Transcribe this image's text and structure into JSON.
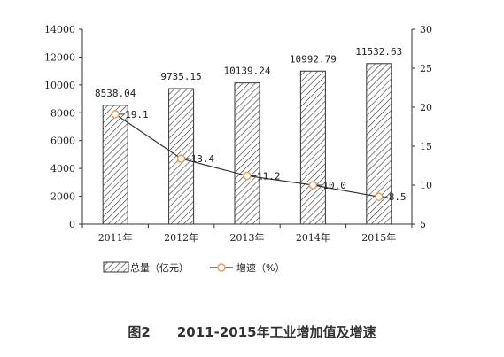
{
  "chart_data": {
    "type": "bar+line",
    "categories": [
      "2011年",
      "2012年",
      "2013年",
      "2014年",
      "2015年"
    ],
    "series": [
      {
        "name": "总量（亿元）",
        "type": "bar",
        "axis": "left",
        "values": [
          8538.04,
          9735.15,
          10139.24,
          10992.79,
          11532.63
        ],
        "labels": [
          "8538.04",
          "9735.15",
          "10139.24",
          "10992.79",
          "11532.63"
        ]
      },
      {
        "name": "增速（%）",
        "type": "line",
        "axis": "right",
        "values": [
          19.1,
          13.4,
          11.2,
          10.0,
          8.5
        ],
        "labels": [
          "19.1",
          "13.4",
          "11.2",
          "10.0",
          "8.5"
        ]
      }
    ],
    "yleft": {
      "lim": [
        0,
        14000
      ],
      "ticks": [
        0,
        2000,
        4000,
        6000,
        8000,
        10000,
        12000,
        14000
      ]
    },
    "yright": {
      "lim": [
        5,
        30
      ],
      "ticks": [
        5,
        10,
        15,
        20,
        25,
        30
      ]
    },
    "grid": false,
    "legend": "bottom",
    "colors": {
      "bar_stroke": "#333333",
      "line": "#333333",
      "marker_fill": "#ffffff",
      "marker_stroke": "#e8a060"
    }
  },
  "caption": {
    "label": "图2",
    "title": "2011-2015年工业增加值及增速"
  }
}
